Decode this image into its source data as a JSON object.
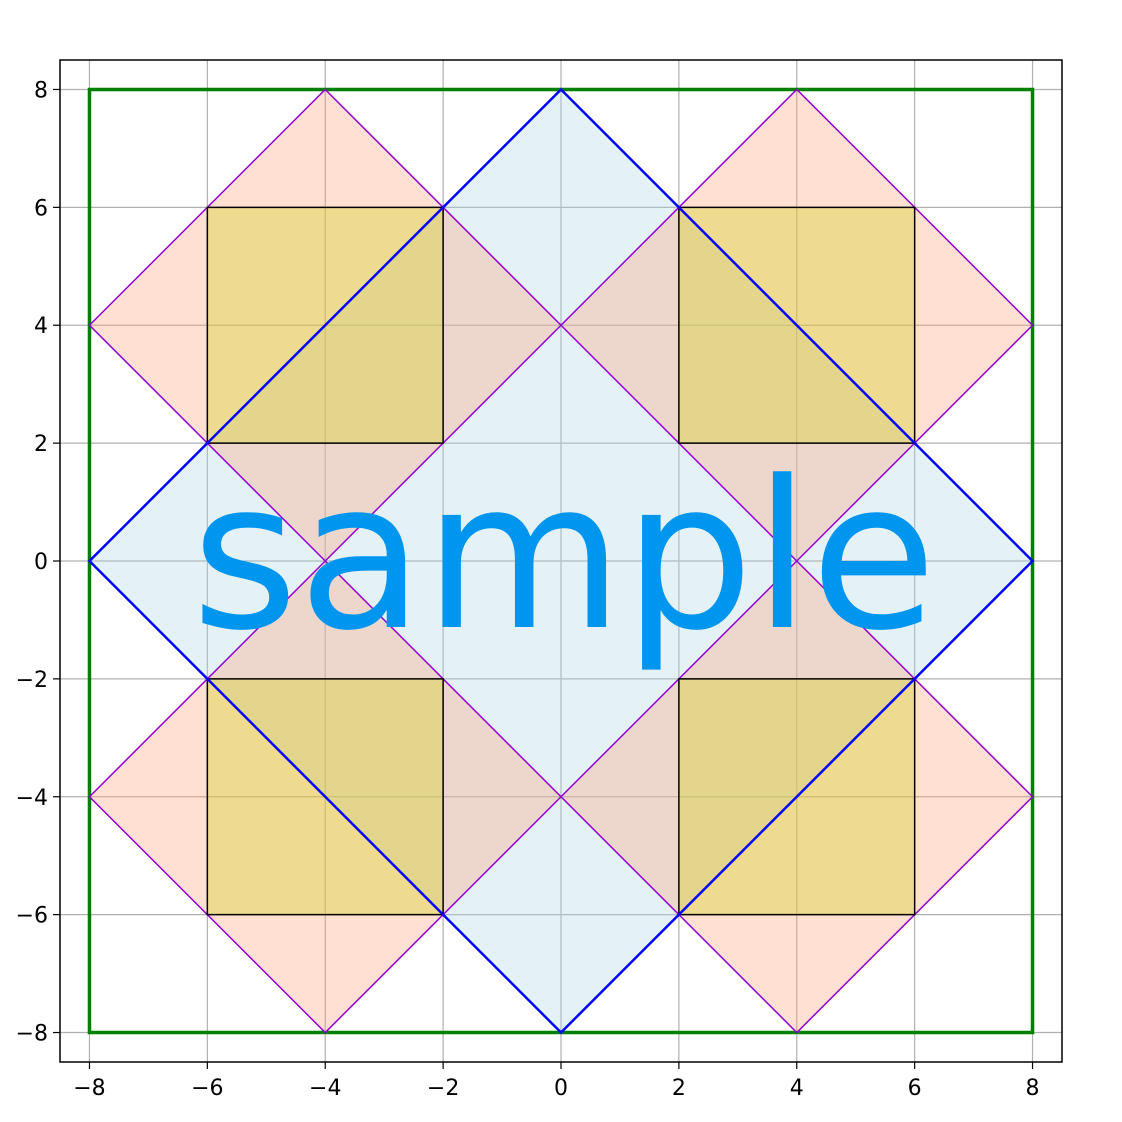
{
  "chart_data": {
    "type": "geometric-diagram",
    "title": "",
    "xlabel": "",
    "ylabel": "",
    "xlim": [
      -8.5,
      8.5
    ],
    "ylim": [
      -8.5,
      8.5
    ],
    "grid": true,
    "xticks": [
      -8,
      -6,
      -4,
      -2,
      0,
      2,
      4,
      6,
      8
    ],
    "yticks": [
      -8,
      -6,
      -4,
      -2,
      0,
      2,
      4,
      6,
      8
    ],
    "xtick_labels": [
      "−8",
      "−6",
      "−4",
      "−2",
      "0",
      "2",
      "4",
      "6",
      "8"
    ],
    "ytick_labels": [
      "−8",
      "−6",
      "−4",
      "−2",
      "0",
      "2",
      "4",
      "6",
      "8"
    ],
    "shapes": {
      "outer_square": {
        "points": [
          [
            -8,
            -8
          ],
          [
            8,
            -8
          ],
          [
            8,
            8
          ],
          [
            -8,
            8
          ]
        ],
        "stroke": "#008000",
        "fill": "none"
      },
      "center_diamond": {
        "points": [
          [
            0,
            8
          ],
          [
            8,
            0
          ],
          [
            0,
            -8
          ],
          [
            -8,
            0
          ]
        ],
        "stroke": "#0000ff",
        "fill": "#add8e6",
        "fill_opacity": 0.33
      },
      "small_diamonds": [
        {
          "points": [
            [
              -4,
              8
            ],
            [
              0,
              4
            ],
            [
              -4,
              0
            ],
            [
              -8,
              4
            ]
          ]
        },
        {
          "points": [
            [
              4,
              8
            ],
            [
              8,
              4
            ],
            [
              4,
              0
            ],
            [
              0,
              4
            ]
          ]
        },
        {
          "points": [
            [
              -4,
              0
            ],
            [
              0,
              -4
            ],
            [
              -4,
              -8
            ],
            [
              -8,
              -4
            ]
          ]
        },
        {
          "points": [
            [
              4,
              0
            ],
            [
              8,
              -4
            ],
            [
              4,
              -8
            ],
            [
              0,
              -4
            ]
          ]
        }
      ],
      "small_diamond_style": {
        "stroke": "#9400d3",
        "fill": "#ffa07a",
        "fill_opacity": 0.33
      },
      "inner_squares": [
        {
          "points": [
            [
              -6,
              2
            ],
            [
              -2,
              2
            ],
            [
              -2,
              6
            ],
            [
              -6,
              6
            ]
          ]
        },
        {
          "points": [
            [
              2,
              2
            ],
            [
              6,
              2
            ],
            [
              6,
              6
            ],
            [
              2,
              6
            ]
          ]
        },
        {
          "points": [
            [
              -6,
              -6
            ],
            [
              -2,
              -6
            ],
            [
              -2,
              -2
            ],
            [
              -6,
              -2
            ]
          ]
        },
        {
          "points": [
            [
              2,
              -6
            ],
            [
              6,
              -6
            ],
            [
              6,
              -2
            ],
            [
              2,
              -2
            ]
          ]
        }
      ],
      "inner_square_style": {
        "stroke": "#000000",
        "fill": "#d4d42a",
        "fill_opacity": 0.4
      }
    },
    "watermark": "sample"
  }
}
